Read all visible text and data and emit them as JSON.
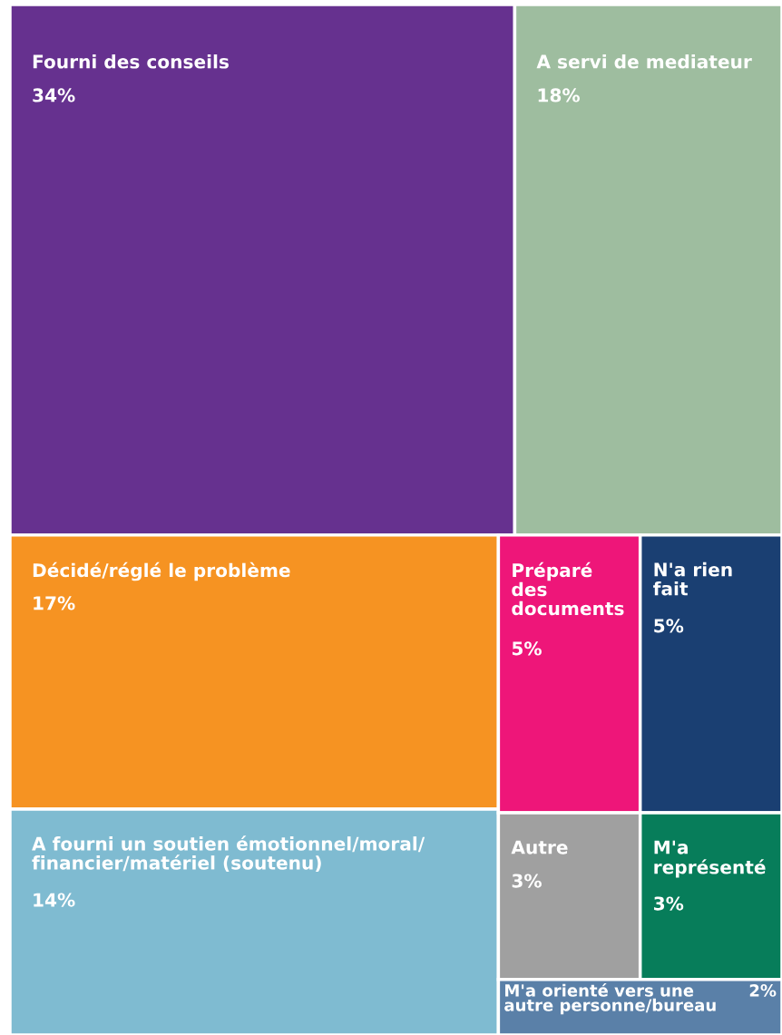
{
  "chart_data": {
    "type": "other",
    "categories": [
      "Fourni des conseils",
      "A servi de mediateur",
      "Décidé/réglé le problème",
      "A fourni un soutien émotionnel/moral/financier/matériel (soutenu)",
      "Préparé des documents",
      "N'a rien fait",
      "Autre",
      "M'a représenté",
      "M'a orienté vers une autre personne/bureau"
    ],
    "values": [
      34,
      18,
      17,
      14,
      5,
      5,
      3,
      3,
      2
    ],
    "value_labels": [
      "34%",
      "18%",
      "17%",
      "14%",
      "5%",
      "5%",
      "3%",
      "3%",
      "2%"
    ],
    "colors": [
      "#66318f",
      "#9ebd9f",
      "#f69322",
      "#7fbbd1",
      "#ee1679",
      "#1a3f72",
      "#a0a0a0",
      "#077d5a",
      "#5a80a8"
    ]
  }
}
